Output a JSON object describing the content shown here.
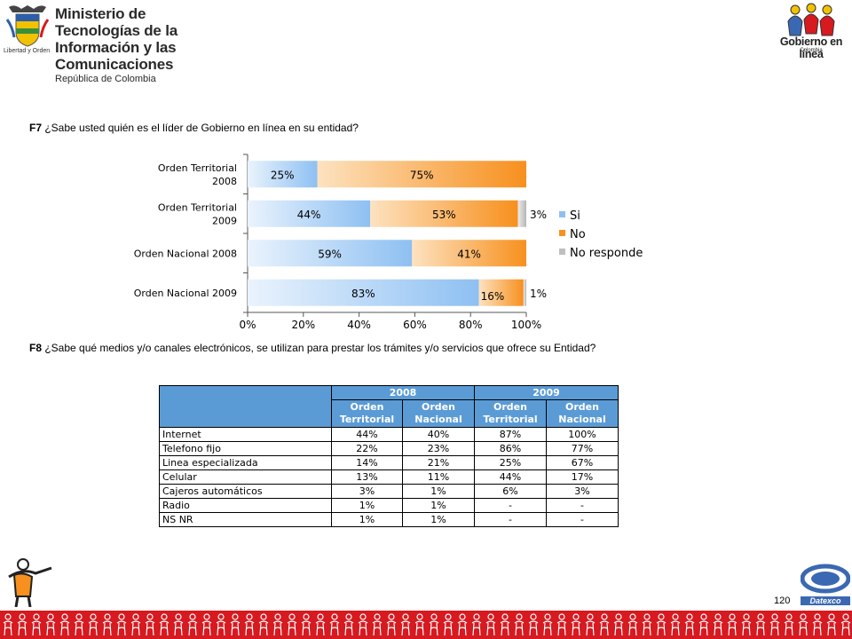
{
  "header": {
    "ministry_line1": "Ministerio de Tecnologías de la",
    "ministry_line2": "Información y las Comunicaciones",
    "ministry_line3": "República de Colombia",
    "shield_caption": "Libertad y Orden",
    "gel_title": "Gobierno en línea",
    "gel_subtitle": "Colombia"
  },
  "q1": {
    "code": "F7",
    "text": " ¿Sabe usted quién es el líder de Gobierno en línea en su entidad?"
  },
  "q2": {
    "code": "F8",
    "text": " ¿Sabe qué medios y/o canales electrónicos, se utilizan para prestar los trámites y/o servicios que ofrece su Entidad?"
  },
  "chart_data": {
    "type": "bar",
    "orientation": "horizontal",
    "stacked": "percent",
    "categories": [
      [
        "Orden Territorial",
        "2008"
      ],
      [
        "Orden Territorial",
        "2009"
      ],
      [
        "Orden Nacional 2008"
      ],
      [
        "Orden Nacional 2009"
      ]
    ],
    "series": [
      {
        "name": "Si",
        "values": [
          25,
          44,
          59,
          83
        ],
        "labels": [
          "25%",
          "44%",
          "59%",
          "83%"
        ],
        "color": "#8ec0f2"
      },
      {
        "name": "No",
        "values": [
          75,
          53,
          41,
          16
        ],
        "labels": [
          "75%",
          "53%",
          "41%",
          "16%"
        ],
        "color": "#f7901e"
      },
      {
        "name": "No responde",
        "values": [
          0,
          3,
          0,
          1
        ],
        "labels": [
          "",
          "3%",
          "",
          "1%"
        ],
        "color": "#bfbfbf"
      }
    ],
    "xlim": [
      0,
      100
    ],
    "xticks": [
      "0%",
      "20%",
      "40%",
      "60%",
      "80%",
      "100%"
    ],
    "legend_position": "right",
    "grid": false
  },
  "table": {
    "year_headers": [
      "2008",
      "2009"
    ],
    "sub_headers": [
      [
        "Orden",
        "Territorial"
      ],
      [
        "Orden",
        "Nacional"
      ],
      [
        "Orden",
        "Territorial"
      ],
      [
        "Orden",
        "Nacional"
      ]
    ],
    "rows": [
      [
        "Internet",
        "44%",
        "40%",
        "87%",
        "100%"
      ],
      [
        "Telefono fijo",
        "22%",
        "23%",
        "86%",
        "77%"
      ],
      [
        "Linea especializada",
        "14%",
        "21%",
        "25%",
        "67%"
      ],
      [
        "Celular",
        "13%",
        "11%",
        "44%",
        "17%"
      ],
      [
        "Cajeros automáticos",
        "3%",
        "1%",
        "6%",
        "3%"
      ],
      [
        "Radio",
        "1%",
        "1%",
        "-",
        "-"
      ],
      [
        "NS NR",
        "1%",
        "1%",
        "-",
        "-"
      ]
    ]
  },
  "footer": {
    "page_number": "120",
    "datexco": "Datexco"
  },
  "colors": {
    "table_header": "#5b9bd5",
    "footer_band": "#d71920"
  }
}
